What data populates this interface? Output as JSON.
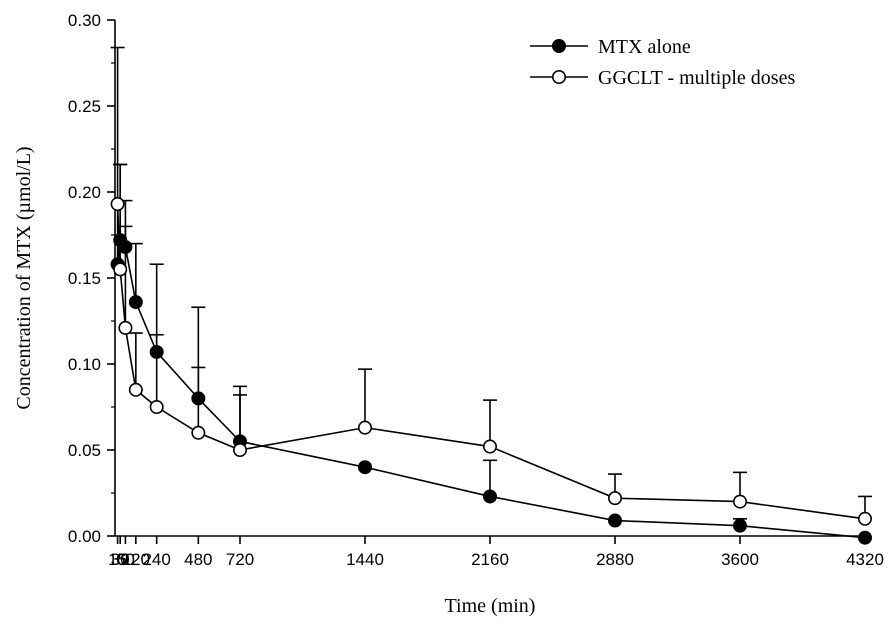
{
  "chart_data": {
    "type": "line",
    "title": "",
    "xlabel": "Time (min)",
    "ylabel": "Concentration of MTX (µmol/L)",
    "xlim": [
      0,
      4320
    ],
    "ylim": [
      0,
      0.3
    ],
    "x_ticks": [
      15,
      30,
      60,
      120,
      240,
      480,
      720,
      1440,
      2160,
      2880,
      3600,
      4320
    ],
    "x_tick_labels": [
      "15",
      "30",
      "60",
      "120",
      "240",
      "480",
      "720",
      "1440",
      "2160",
      "2880",
      "3600",
      "4320"
    ],
    "y_ticks": [
      0,
      0.05,
      0.1,
      0.15,
      0.2,
      0.25,
      0.3
    ],
    "y_tick_labels": [
      "0.00",
      "0.05",
      "0.10",
      "0.15",
      "0.20",
      "0.25",
      "0.30"
    ],
    "legend_position": "top-right",
    "grid": false,
    "series": [
      {
        "name": "MTX alone",
        "marker": "filled-circle",
        "color": "#000000",
        "x": [
          15,
          30,
          60,
          120,
          240,
          480,
          720,
          1440,
          2160,
          2880,
          3600,
          4320
        ],
        "y": [
          0.158,
          0.172,
          0.168,
          0.136,
          0.107,
          0.08,
          0.055,
          0.04,
          0.023,
          0.009,
          0.006,
          -0.001
        ],
        "error_upper": [
          0.284,
          0.216,
          0.195,
          0.17,
          0.158,
          0.133,
          0.087,
          null,
          0.044,
          null,
          0.01,
          null
        ]
      },
      {
        "name": "GGCLT - multiple doses",
        "marker": "open-circle",
        "color": "#000000",
        "x": [
          15,
          30,
          60,
          120,
          240,
          480,
          720,
          1440,
          2160,
          2880,
          3600,
          4320
        ],
        "y": [
          0.193,
          0.155,
          0.121,
          0.085,
          0.075,
          0.06,
          0.05,
          0.063,
          0.052,
          0.022,
          0.02,
          0.01
        ],
        "error_upper": [
          null,
          0.216,
          0.18,
          0.118,
          0.117,
          0.098,
          0.082,
          0.097,
          0.079,
          0.036,
          0.037,
          0.023
        ]
      }
    ]
  }
}
